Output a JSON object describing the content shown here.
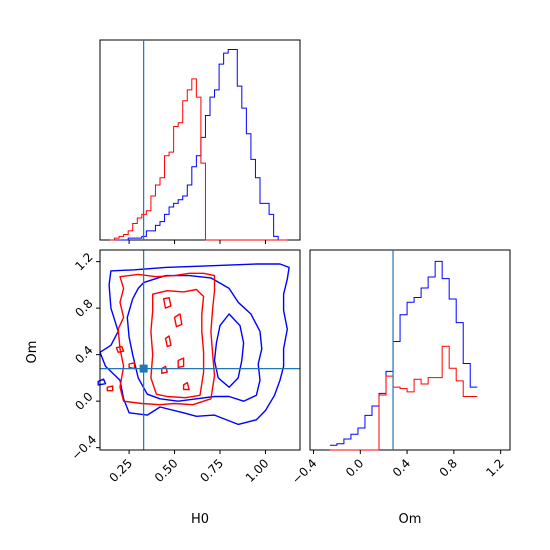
{
  "chart_data": {
    "type": "corner",
    "parameters": [
      "H0",
      "Om"
    ],
    "truth": {
      "H0": 0.33,
      "Om": 0.28
    },
    "colors": {
      "blue": "#0000ff",
      "red": "#ff0000",
      "truth": "#1f77b4"
    },
    "axes": {
      "H0": {
        "range": [
          0.09,
          1.19
        ],
        "ticks": [
          0.25,
          0.5,
          0.75,
          1.0
        ],
        "tick_labels": [
          "0.25",
          "0.50",
          "0.75",
          "1.00"
        ],
        "label": "H0"
      },
      "Om_y": {
        "range": [
          -0.42,
          1.3
        ],
        "ticks": [
          -0.4,
          0.0,
          0.4,
          0.8,
          1.2
        ],
        "tick_labels": [
          "−0.4",
          "0.0",
          "0.4",
          "0.8",
          "1.2"
        ],
        "label": "Om"
      },
      "Om_x": {
        "range": [
          -0.43,
          1.28
        ],
        "ticks": [
          -0.4,
          0.0,
          0.4,
          0.8,
          1.2
        ],
        "tick_labels": [
          "−0.4",
          "0.0",
          "0.4",
          "0.8",
          "1.2"
        ],
        "label": "Om"
      }
    },
    "hist_H0": {
      "bin_edges": [
        0.145,
        0.17,
        0.195,
        0.22,
        0.245,
        0.27,
        0.295,
        0.32,
        0.345,
        0.37,
        0.395,
        0.42,
        0.445,
        0.47,
        0.495,
        0.52,
        0.545,
        0.57,
        0.595,
        0.62,
        0.645,
        0.67,
        0.695,
        0.72,
        0.745,
        0.77,
        0.795,
        0.82,
        0.845,
        0.87,
        0.895,
        0.92,
        0.945,
        0.97,
        0.995,
        1.02,
        1.045,
        1.07,
        1.095,
        1.12
      ],
      "blue": [
        0,
        0,
        0,
        0,
        1,
        1,
        1,
        2,
        5,
        5,
        8,
        10,
        14,
        18,
        20,
        22,
        24,
        30,
        40,
        46,
        56,
        68,
        78,
        82,
        96,
        102,
        104,
        104,
        84,
        72,
        58,
        44,
        34,
        20,
        20,
        14,
        2,
        0,
        0
      ],
      "red": [
        0,
        1,
        2,
        3,
        5,
        9,
        12,
        14,
        16,
        24,
        30,
        34,
        46,
        48,
        62,
        64,
        76,
        82,
        88,
        78,
        42,
        0,
        0,
        0,
        0,
        0,
        0,
        0,
        0,
        0,
        0,
        0,
        0,
        0,
        0,
        0,
        0,
        0,
        0
      ]
    },
    "hist_Om": {
      "bin_edges": [
        -0.26,
        -0.2,
        -0.14,
        -0.08,
        -0.02,
        0.04,
        0.1,
        0.16,
        0.22,
        0.28,
        0.34,
        0.4,
        0.46,
        0.52,
        0.58,
        0.64,
        0.7,
        0.76,
        0.82,
        0.88,
        0.94,
        1.0
      ],
      "blue": [
        6,
        8,
        14,
        20,
        28,
        44,
        56,
        72,
        100,
        138,
        172,
        188,
        194,
        206,
        220,
        240,
        218,
        192,
        162,
        110,
        80
      ],
      "red": [
        0,
        0,
        0,
        0,
        0,
        0,
        0,
        70,
        94,
        80,
        78,
        74,
        90,
        84,
        92,
        92,
        132,
        104,
        88,
        68,
        68
      ]
    },
    "contours": {
      "blue_outer": [
        [
          0.15,
          1.12
        ],
        [
          0.28,
          1.13
        ],
        [
          0.45,
          1.15
        ],
        [
          0.62,
          1.16
        ],
        [
          0.8,
          1.17
        ],
        [
          0.95,
          1.18
        ],
        [
          1.08,
          1.18
        ],
        [
          1.13,
          1.15
        ],
        [
          1.12,
          1.05
        ],
        [
          1.1,
          0.92
        ],
        [
          1.1,
          0.78
        ],
        [
          1.12,
          0.62
        ],
        [
          1.1,
          0.45
        ],
        [
          1.1,
          0.3
        ],
        [
          1.08,
          0.18
        ],
        [
          1.05,
          0.05
        ],
        [
          1.0,
          -0.08
        ],
        [
          0.95,
          -0.16
        ],
        [
          0.85,
          -0.2
        ],
        [
          0.72,
          -0.12
        ],
        [
          0.62,
          -0.13
        ],
        [
          0.55,
          -0.1
        ],
        [
          0.42,
          -0.05
        ],
        [
          0.35,
          -0.12
        ],
        [
          0.25,
          -0.1
        ],
        [
          0.22,
          0.02
        ],
        [
          0.2,
          0.18
        ],
        [
          0.12,
          0.3
        ],
        [
          0.09,
          0.42
        ],
        [
          0.15,
          0.48
        ],
        [
          0.19,
          0.6
        ],
        [
          0.15,
          0.8
        ],
        [
          0.14,
          1.0
        ],
        [
          0.15,
          1.12
        ]
      ],
      "blue_inner": [
        [
          0.33,
          1.02
        ],
        [
          0.45,
          1.08
        ],
        [
          0.58,
          1.08
        ],
        [
          0.7,
          1.06
        ],
        [
          0.8,
          0.97
        ],
        [
          0.85,
          0.85
        ],
        [
          0.92,
          0.75
        ],
        [
          0.97,
          0.6
        ],
        [
          0.98,
          0.45
        ],
        [
          0.96,
          0.32
        ],
        [
          0.97,
          0.18
        ],
        [
          0.95,
          0.05
        ],
        [
          0.88,
          0.0
        ],
        [
          0.8,
          0.04
        ],
        [
          0.72,
          0.04
        ],
        [
          0.62,
          0.02
        ],
        [
          0.52,
          0.0
        ],
        [
          0.42,
          0.02
        ],
        [
          0.35,
          0.06
        ],
        [
          0.3,
          0.2
        ],
        [
          0.27,
          0.4
        ],
        [
          0.25,
          0.55
        ],
        [
          0.24,
          0.72
        ],
        [
          0.27,
          0.88
        ],
        [
          0.3,
          0.97
        ],
        [
          0.33,
          1.02
        ]
      ],
      "blue_hole": [
        [
          0.8,
          0.75
        ],
        [
          0.86,
          0.65
        ],
        [
          0.88,
          0.5
        ],
        [
          0.87,
          0.35
        ],
        [
          0.85,
          0.2
        ],
        [
          0.8,
          0.12
        ],
        [
          0.74,
          0.2
        ],
        [
          0.72,
          0.35
        ],
        [
          0.73,
          0.5
        ],
        [
          0.75,
          0.65
        ],
        [
          0.8,
          0.75
        ]
      ],
      "blue_blob": [
        [
          0.08,
          0.17
        ],
        [
          0.11,
          0.19
        ],
        [
          0.12,
          0.15
        ],
        [
          0.08,
          0.14
        ],
        [
          0.08,
          0.17
        ]
      ],
      "red_outer": [
        [
          0.2,
          1.07
        ],
        [
          0.3,
          1.09
        ],
        [
          0.4,
          1.07
        ],
        [
          0.5,
          1.08
        ],
        [
          0.58,
          1.1
        ],
        [
          0.66,
          1.1
        ],
        [
          0.72,
          1.08
        ],
        [
          0.72,
          0.95
        ],
        [
          0.71,
          0.8
        ],
        [
          0.7,
          0.6
        ],
        [
          0.71,
          0.4
        ],
        [
          0.72,
          0.22
        ],
        [
          0.7,
          0.02
        ],
        [
          0.6,
          -0.03
        ],
        [
          0.5,
          -0.02
        ],
        [
          0.42,
          -0.03
        ],
        [
          0.32,
          -0.02
        ],
        [
          0.22,
          0.0
        ],
        [
          0.2,
          0.12
        ],
        [
          0.22,
          0.3
        ],
        [
          0.2,
          0.45
        ],
        [
          0.19,
          0.62
        ],
        [
          0.22,
          0.72
        ],
        [
          0.2,
          0.85
        ],
        [
          0.22,
          0.97
        ],
        [
          0.2,
          1.07
        ]
      ],
      "red_inner": [
        [
          0.38,
          0.92
        ],
        [
          0.46,
          0.95
        ],
        [
          0.55,
          0.94
        ],
        [
          0.62,
          0.96
        ],
        [
          0.66,
          0.9
        ],
        [
          0.65,
          0.75
        ],
        [
          0.65,
          0.6
        ],
        [
          0.66,
          0.42
        ],
        [
          0.66,
          0.25
        ],
        [
          0.64,
          0.05
        ],
        [
          0.56,
          0.03
        ],
        [
          0.46,
          0.04
        ],
        [
          0.4,
          0.06
        ],
        [
          0.37,
          0.2
        ],
        [
          0.38,
          0.4
        ],
        [
          0.37,
          0.6
        ],
        [
          0.38,
          0.78
        ],
        [
          0.38,
          0.92
        ]
      ],
      "red_blobs": [
        [
          [
            0.18,
            0.46
          ],
          [
            0.21,
            0.47
          ],
          [
            0.22,
            0.43
          ],
          [
            0.19,
            0.42
          ],
          [
            0.18,
            0.46
          ]
        ],
        [
          [
            0.25,
            0.32
          ],
          [
            0.28,
            0.33
          ],
          [
            0.28,
            0.28
          ],
          [
            0.25,
            0.29
          ],
          [
            0.25,
            0.32
          ]
        ],
        [
          [
            0.44,
            0.88
          ],
          [
            0.47,
            0.89
          ],
          [
            0.48,
            0.82
          ],
          [
            0.45,
            0.8
          ],
          [
            0.44,
            0.88
          ]
        ],
        [
          [
            0.5,
            0.72
          ],
          [
            0.53,
            0.75
          ],
          [
            0.54,
            0.66
          ],
          [
            0.51,
            0.64
          ],
          [
            0.5,
            0.72
          ]
        ],
        [
          [
            0.45,
            0.54
          ],
          [
            0.47,
            0.56
          ],
          [
            0.48,
            0.48
          ],
          [
            0.46,
            0.47
          ],
          [
            0.45,
            0.54
          ]
        ],
        [
          [
            0.52,
            0.35
          ],
          [
            0.55,
            0.37
          ],
          [
            0.55,
            0.3
          ],
          [
            0.52,
            0.29
          ],
          [
            0.52,
            0.35
          ]
        ],
        [
          [
            0.43,
            0.28
          ],
          [
            0.45,
            0.3
          ],
          [
            0.46,
            0.25
          ],
          [
            0.43,
            0.24
          ],
          [
            0.43,
            0.28
          ]
        ],
        [
          [
            0.55,
            0.14
          ],
          [
            0.57,
            0.16
          ],
          [
            0.58,
            0.1
          ],
          [
            0.55,
            0.1
          ],
          [
            0.55,
            0.14
          ]
        ],
        [
          [
            0.13,
            0.12
          ],
          [
            0.16,
            0.13
          ],
          [
            0.16,
            0.09
          ],
          [
            0.13,
            0.09
          ],
          [
            0.13,
            0.12
          ]
        ]
      ]
    }
  }
}
